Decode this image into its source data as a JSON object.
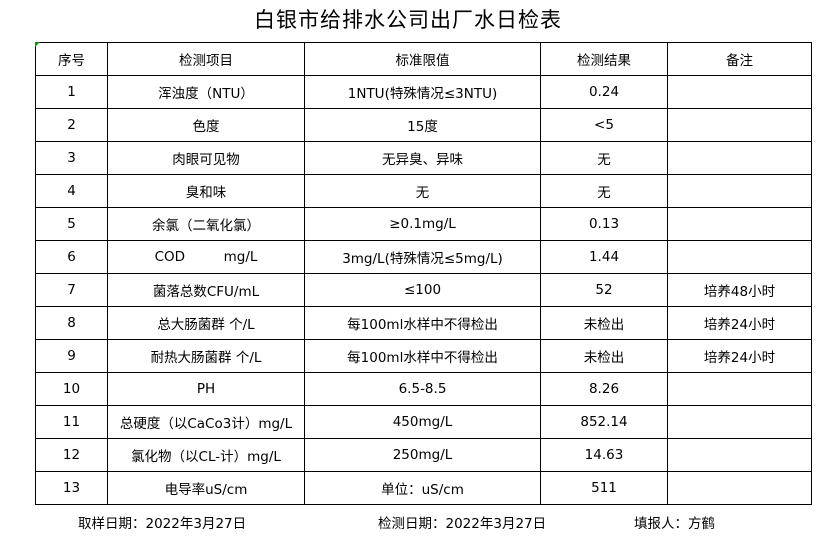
{
  "title": "白银市给排水公司出厂水日检表",
  "headers": [
    "序号",
    "检测项目",
    "标准限值",
    "检测结果",
    "备注"
  ],
  "rows": [
    [
      "1",
      "浑浊度（NTU）",
      "1NTU(特殊情况≤3NTU)",
      "0.24",
      ""
    ],
    [
      "2",
      "色度",
      "15度",
      "<5",
      ""
    ],
    [
      "3",
      "肉眼可见物",
      "无异臭、异味",
      "无",
      ""
    ],
    [
      "4",
      "臭和味",
      "无",
      "无",
      ""
    ],
    [
      "5",
      "余氯（二氧化氯）",
      "≥0.1mg/L",
      "0.13",
      ""
    ],
    [
      "6",
      "COD         mg/L",
      "3mg/L(特殊情况≤5mg/L)",
      "1.44",
      ""
    ],
    [
      "7",
      "菌落总数CFU/mL",
      "≤100",
      "52",
      "培养48小时"
    ],
    [
      "8",
      "总大肠菌群 个/L",
      "每100ml水样中不得检出",
      "未检出",
      "培养24小时"
    ],
    [
      "9",
      "耐热大肠菌群 个/L",
      "每100ml水样中不得检出",
      "未检出",
      "培养24小时"
    ],
    [
      "10",
      "PH",
      "6.5-8.5",
      "8.26",
      ""
    ],
    [
      "11",
      "总硬度（以CaCo3计）mg/L",
      "450mg/L",
      "852.14",
      ""
    ],
    [
      "12",
      "氯化物（以CL-计）mg/L",
      "250mg/L",
      "14.63",
      ""
    ],
    [
      "13",
      "电导率uS/cm",
      "单位：uS/cm",
      "511",
      ""
    ]
  ],
  "footer": {
    "sample_date": "取样日期：2022年3月27日",
    "test_date": "检测日期：2022年3月27日",
    "reporter": "填报人：方鹤"
  }
}
